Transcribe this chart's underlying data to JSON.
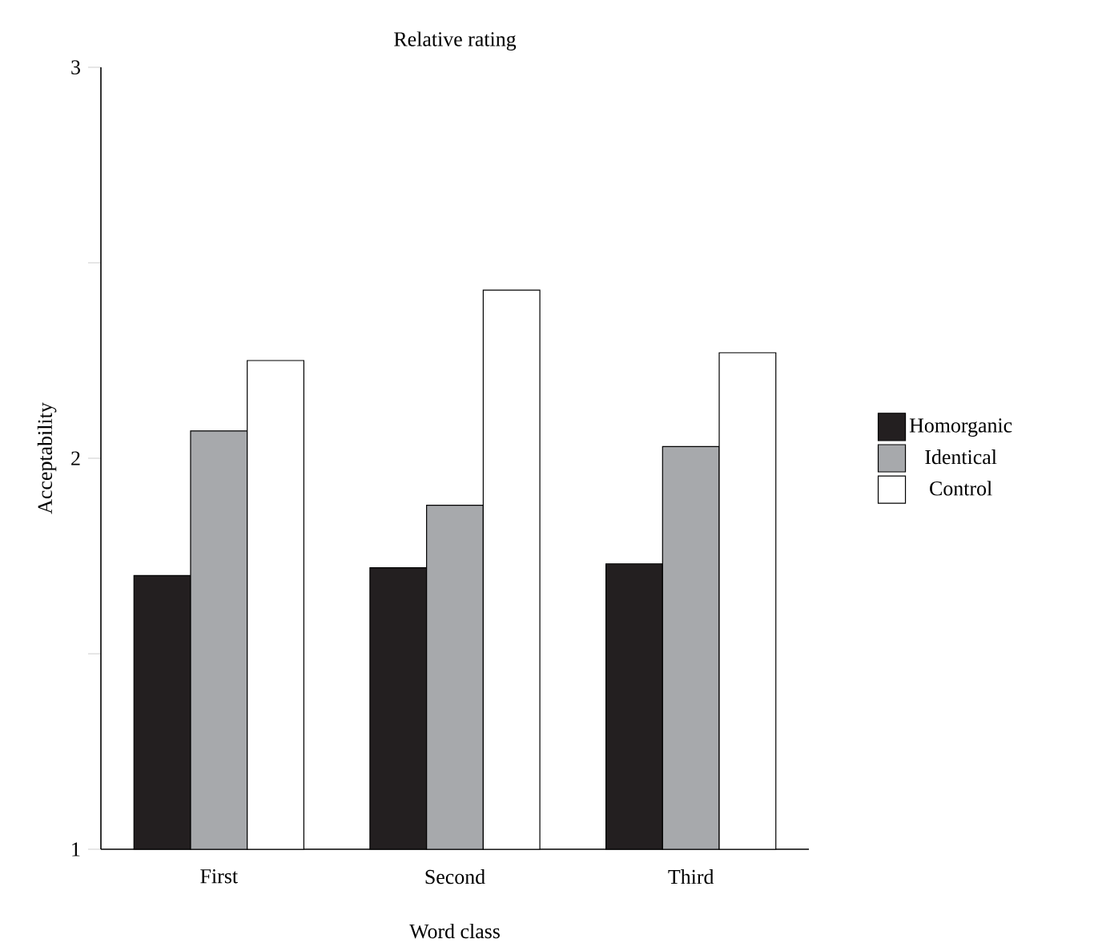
{
  "chart_data": {
    "type": "bar",
    "title": "Relative rating",
    "xlabel": "Word class",
    "ylabel": "Acceptability",
    "categories": [
      "First",
      "Second",
      "Third"
    ],
    "series": [
      {
        "name": "Homorganic",
        "color": "#231f20",
        "values": [
          1.7,
          1.72,
          1.73
        ]
      },
      {
        "name": "Identical",
        "color": "#a7a9ac",
        "values": [
          2.07,
          1.88,
          2.03
        ]
      },
      {
        "name": "Control",
        "color": "#ffffff",
        "values": [
          2.25,
          2.43,
          2.27
        ]
      }
    ],
    "ylim": [
      1,
      3
    ],
    "yticks": [
      1,
      {
        "value": 1.5,
        "label": null
      },
      2,
      {
        "value": 2.5,
        "label": null
      },
      3
    ],
    "legend": "right"
  }
}
